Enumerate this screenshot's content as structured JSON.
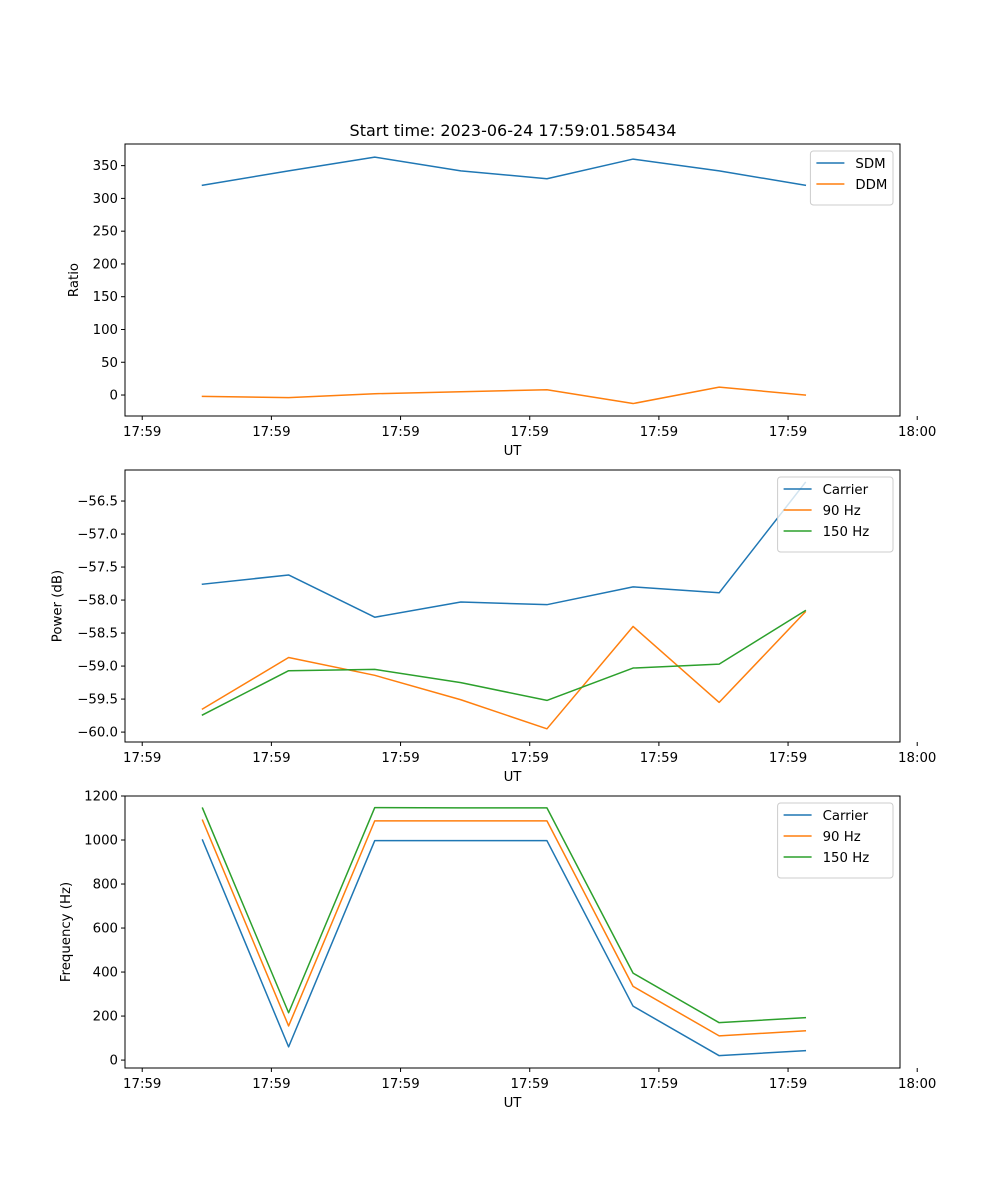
{
  "title": "Start time: 2023-06-24 17:59:01.585434",
  "colors": {
    "blue": "#1f77b4",
    "orange": "#ff7f0e",
    "green": "#2ca02c"
  },
  "chart_data": [
    {
      "type": "line",
      "xlabel": "UT",
      "ylabel": "Ratio",
      "xlim": [
        -0.4,
        8.6
      ],
      "ylim": [
        -32,
        383
      ],
      "xtick_positions": [
        -0.2,
        1.3,
        2.8,
        4.3,
        5.8,
        7.3,
        8.8
      ],
      "xtick_labels": [
        "17:59",
        "17:59",
        "17:59",
        "17:59",
        "17:59",
        "17:59",
        "18:00"
      ],
      "ytick_values": [
        0,
        50,
        100,
        150,
        200,
        250,
        300,
        350
      ],
      "ytick_labels": [
        "0",
        "50",
        "100",
        "150",
        "200",
        "250",
        "300",
        "350"
      ],
      "legend_position": "top-right",
      "x": [
        0.5,
        1.5,
        2.5,
        3.5,
        4.5,
        5.5,
        6.5,
        7.5
      ],
      "series": [
        {
          "name": "SDM",
          "color": "#1f77b4",
          "values": [
            320,
            342,
            363,
            342,
            330,
            360,
            342,
            320
          ]
        },
        {
          "name": "DDM",
          "color": "#ff7f0e",
          "values": [
            -2,
            -4,
            2,
            5,
            8,
            -13,
            12,
            0
          ]
        }
      ]
    },
    {
      "type": "line",
      "xlabel": "UT",
      "ylabel": "Power (dB)",
      "xlim": [
        -0.4,
        8.6
      ],
      "ylim": [
        -60.15,
        -56.03
      ],
      "xtick_positions": [
        -0.2,
        1.3,
        2.8,
        4.3,
        5.8,
        7.3,
        8.8
      ],
      "xtick_labels": [
        "17:59",
        "17:59",
        "17:59",
        "17:59",
        "17:59",
        "17:59",
        "18:00"
      ],
      "ytick_values": [
        -60.0,
        -59.5,
        -59.0,
        -58.5,
        -58.0,
        -57.5,
        -57.0,
        -56.5
      ],
      "ytick_labels": [
        "−60.0",
        "−59.5",
        "−59.0",
        "−58.5",
        "−58.0",
        "−57.5",
        "−57.0",
        "−56.5"
      ],
      "legend_position": "top-right",
      "x": [
        0.5,
        1.5,
        2.5,
        3.5,
        4.5,
        5.5,
        6.5,
        7.5
      ],
      "series": [
        {
          "name": "Carrier",
          "color": "#1f77b4",
          "values": [
            -57.76,
            -57.62,
            -58.26,
            -58.03,
            -58.07,
            -57.8,
            -57.89,
            -56.22
          ]
        },
        {
          "name": "90 Hz",
          "color": "#ff7f0e",
          "values": [
            -59.65,
            -58.87,
            -59.14,
            -59.51,
            -59.95,
            -58.4,
            -59.55,
            -58.18
          ]
        },
        {
          "name": "150 Hz",
          "color": "#2ca02c",
          "values": [
            -59.74,
            -59.07,
            -59.05,
            -59.25,
            -59.52,
            -59.03,
            -58.97,
            -58.16
          ]
        }
      ]
    },
    {
      "type": "line",
      "xlabel": "UT",
      "ylabel": "Frequency (Hz)",
      "xlim": [
        -0.4,
        8.6
      ],
      "ylim": [
        -36,
        1200
      ],
      "xtick_positions": [
        -0.2,
        1.3,
        2.8,
        4.3,
        5.8,
        7.3,
        8.8
      ],
      "xtick_labels": [
        "17:59",
        "17:59",
        "17:59",
        "17:59",
        "17:59",
        "17:59",
        "18:00"
      ],
      "ytick_values": [
        0,
        200,
        400,
        600,
        800,
        1000,
        1200
      ],
      "ytick_labels": [
        "0",
        "200",
        "400",
        "600",
        "800",
        "1000",
        "1200"
      ],
      "legend_position": "top-right",
      "x": [
        0.5,
        1.5,
        2.5,
        3.5,
        4.5,
        5.5,
        6.5,
        7.5
      ],
      "series": [
        {
          "name": "Carrier",
          "color": "#1f77b4",
          "values": [
            1000,
            60,
            997,
            997,
            997,
            245,
            20,
            43
          ]
        },
        {
          "name": "90 Hz",
          "color": "#ff7f0e",
          "values": [
            1090,
            155,
            1087,
            1087,
            1087,
            335,
            110,
            133
          ]
        },
        {
          "name": "150 Hz",
          "color": "#2ca02c",
          "values": [
            1145,
            215,
            1147,
            1146,
            1146,
            395,
            170,
            193
          ]
        }
      ]
    }
  ]
}
